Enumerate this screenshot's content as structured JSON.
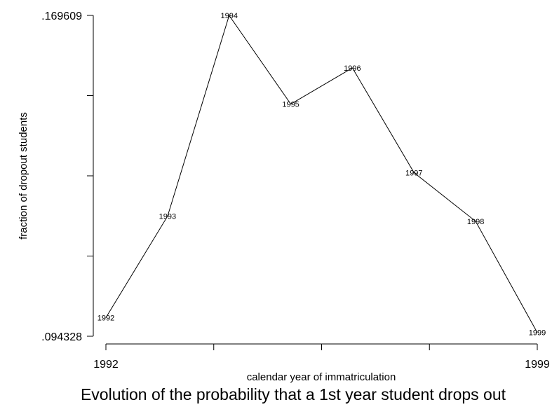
{
  "chart_data": {
    "type": "line",
    "title": "Evolution of the probability that a 1st year student drops out",
    "xlabel": "calendar year of immatriculation",
    "ylabel": "fraction of dropout students",
    "x": [
      1992,
      1993,
      1994,
      1995,
      1996,
      1997,
      1998,
      1999
    ],
    "point_labels": [
      "1992",
      "1993",
      "1994",
      "1995",
      "1996",
      "1997",
      "1998",
      "1999"
    ],
    "series": [
      {
        "values": [
          0.0987,
          0.1225,
          0.1696,
          0.1488,
          0.1573,
          0.1327,
          0.1213,
          0.0952
        ]
      }
    ],
    "xlim": [
      1992,
      1999
    ],
    "ylim": [
      0.094328,
      0.169609
    ],
    "x_ticks": [
      1992,
      1999
    ],
    "x_tick_labels": [
      "1992",
      "1999"
    ],
    "y_ticks": [
      0.094328,
      0.169609
    ],
    "y_tick_labels": [
      ".094328",
      ".169609"
    ],
    "minor_tick_count": 3,
    "grid": false,
    "line_color": "#000000"
  }
}
